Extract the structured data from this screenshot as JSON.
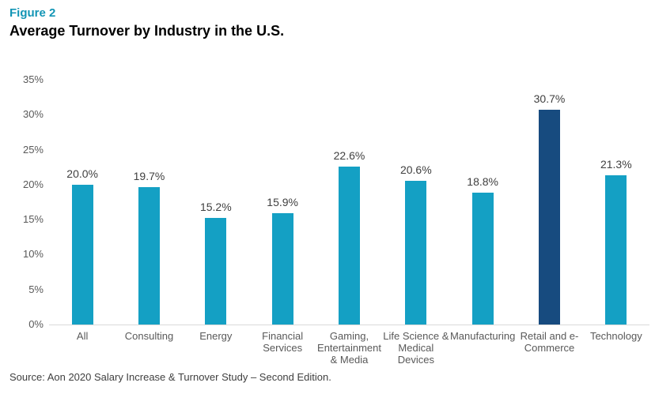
{
  "header": {
    "figure_label": "Figure 2",
    "title": "Average Turnover by Industry in the U.S."
  },
  "source": "Source: Aon 2020 Salary Increase & Turnover Study – Second Edition.",
  "colors": {
    "figure_label_teal": "#1295B5",
    "bar_teal": "#14A0C4",
    "bar_highlight_navy": "#174B7F",
    "axis_line": "#D9D9D9",
    "tick_text": "#595959",
    "value_text": "#404040"
  },
  "chart_data": {
    "type": "bar",
    "title": "Average Turnover by Industry in the U.S.",
    "xlabel": "",
    "ylabel": "",
    "categories": [
      "All",
      "Consulting",
      "Energy",
      "Financial\nServices",
      "Gaming,\nEntertainment\n& Media",
      "Life Science &\nMedical\nDevices",
      "Manufacturing",
      "Retail and e-\nCommerce",
      "Technology"
    ],
    "values": [
      20.0,
      19.7,
      15.2,
      15.9,
      22.6,
      20.6,
      18.8,
      30.7,
      21.3
    ],
    "value_labels": [
      "20.0%",
      "19.7%",
      "15.2%",
      "15.9%",
      "22.6%",
      "20.6%",
      "18.8%",
      "30.7%",
      "21.3%"
    ],
    "highlight_index": 7,
    "ylim": [
      0,
      35
    ],
    "ytick_step": 5,
    "ytick_labels": [
      "0%",
      "5%",
      "10%",
      "15%",
      "20%",
      "25%",
      "30%",
      "35%"
    ],
    "grid": false,
    "legend": "none",
    "data_labels": true
  }
}
